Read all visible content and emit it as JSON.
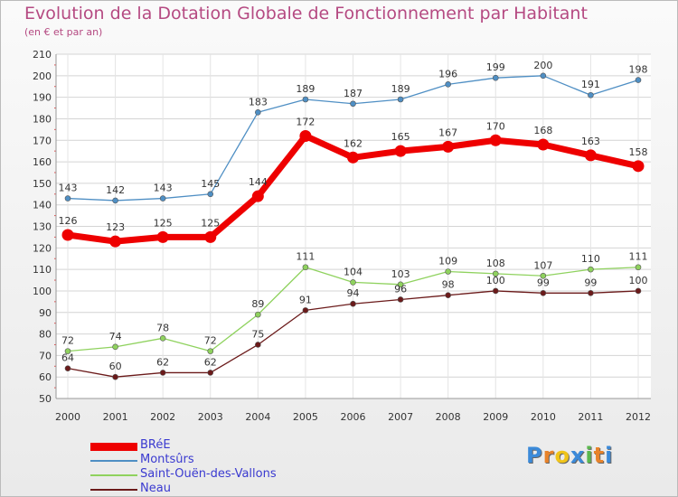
{
  "title": "Evolution de la Dotation Globale de Fonctionnement par Habitant",
  "subtitle": "(en € et par an)",
  "logo": {
    "text": "Proxiti",
    "colors": [
      "#3b8ad9",
      "#e8832a",
      "#f0c419",
      "#3b8ad9",
      "#5bb84e",
      "#e8832a",
      "#3b8ad9"
    ]
  },
  "chart_data": {
    "type": "line",
    "categories": [
      "2000",
      "2001",
      "2002",
      "2003",
      "2004",
      "2005",
      "2006",
      "2007",
      "2008",
      "2009",
      "2010",
      "2011",
      "2012"
    ],
    "ylim": [
      50,
      210
    ],
    "yticks": [
      50,
      60,
      70,
      80,
      90,
      100,
      110,
      120,
      130,
      140,
      150,
      160,
      170,
      180,
      190,
      200,
      210
    ],
    "grid": true,
    "legend_position": "bottom-left",
    "series": [
      {
        "name": "Montsûrs",
        "color": "#4f8fc4",
        "values": [
          143,
          142,
          143,
          145,
          183,
          189,
          187,
          189,
          196,
          199,
          200,
          191,
          198
        ]
      },
      {
        "name": "Saint-Ouën-des-Vallons",
        "color": "#8fd25e",
        "values": [
          72,
          74,
          78,
          72,
          89,
          111,
          104,
          103,
          109,
          108,
          107,
          110,
          111
        ]
      },
      {
        "name": "Neau",
        "color": "#6b1a1a",
        "values": [
          64,
          60,
          62,
          62,
          75,
          91,
          94,
          96,
          98,
          100,
          99,
          99,
          100
        ]
      },
      {
        "name": "BRéE",
        "color": "#ee0000",
        "values": [
          126,
          123,
          125,
          125,
          144,
          172,
          162,
          165,
          167,
          170,
          168,
          163,
          158
        ]
      }
    ],
    "legend_order": [
      "BRéE",
      "Montsûrs",
      "Saint-Ouën-des-Vallons",
      "Neau"
    ]
  }
}
